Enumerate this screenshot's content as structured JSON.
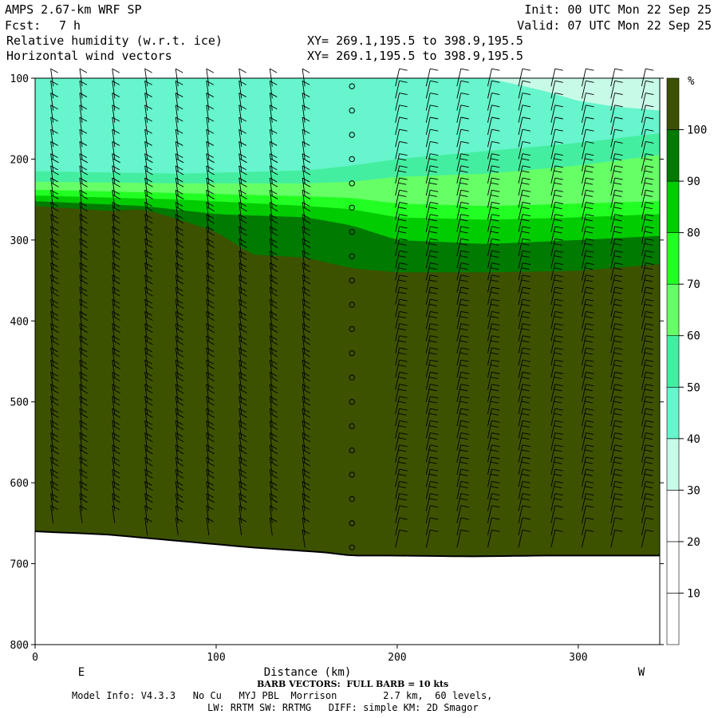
{
  "header": {
    "model": "AMPS 2.67-km WRF SP",
    "fcst_label": "Fcst:",
    "fcst_value": "7 h",
    "init": "Init: 00 UTC Mon 22 Sep 25",
    "valid": "Valid: 07 UTC Mon 22 Sep 25",
    "field1": "Relative humidity (w.r.t. ice)",
    "field2": "Horizontal wind vectors",
    "xy1": "XY= 269.1,195.5 to 398.9,195.5",
    "xy2": "XY= 269.1,195.5 to 398.9,195.5"
  },
  "footer": {
    "barb_note": "BARB VECTORS:  FULL BARB = 10 kts",
    "model_info": "Model Info: V4.3.3   No Cu   MYJ PBL  Morrison        2.7 km,  60 levels,",
    "physics": "LW: RRTM SW: RRTMG   DIFF: simple KM: 2D Smagor"
  },
  "chart_data": {
    "type": "heatmap",
    "xlabel": "Distance (km)",
    "ylabel": "",
    "x_left_label": "E",
    "x_right_label": "W",
    "xlim": [
      0,
      345
    ],
    "ylim": [
      100,
      800
    ],
    "x_ticks": [
      0,
      100,
      200,
      300
    ],
    "y_ticks": [
      100,
      200,
      300,
      400,
      500,
      600,
      700,
      800
    ],
    "colorbar": {
      "unit": "%",
      "levels": [
        10,
        20,
        30,
        40,
        50,
        60,
        70,
        80,
        90,
        100
      ],
      "colors": [
        "#ffffff",
        "#ffffff",
        "#ffffff",
        "#c8fae8",
        "#66f5cc",
        "#44eea0",
        "#66ff66",
        "#22ff22",
        "#00cc00",
        "#007a00",
        "#3d5200"
      ]
    },
    "colors": {
      "saturated": "#3d5200",
      "rh90": "#007a00",
      "rh80": "#00cc00",
      "rh70": "#22ff22",
      "rh60": "#66ff66",
      "rh50": "#44eea0",
      "rh40": "#66f5cc",
      "rh30": "#c8fae8",
      "terrain": "#ffffff",
      "barb": "#000000"
    },
    "terrain_pressure": {
      "x": [
        0,
        40,
        80,
        120,
        160,
        175,
        200,
        240,
        280,
        320,
        345
      ],
      "p": [
        660,
        664,
        672,
        680,
        686,
        690,
        690,
        691,
        690,
        690,
        690
      ]
    },
    "moist_top_pressure": {
      "x": [
        0,
        40,
        60,
        80,
        100,
        120,
        150,
        175,
        200,
        250,
        300,
        345
      ],
      "p": [
        258,
        264,
        262,
        275,
        290,
        318,
        322,
        335,
        340,
        340,
        338,
        330
      ]
    },
    "rh90_top_pressure": {
      "x": [
        0,
        60,
        100,
        150,
        175,
        200,
        250,
        300,
        345
      ],
      "p": [
        252,
        258,
        268,
        272,
        282,
        300,
        305,
        300,
        295
      ]
    },
    "rh80_top_pressure": {
      "x": [
        0,
        80,
        150,
        175,
        200,
        250,
        300,
        345
      ],
      "p": [
        245,
        250,
        258,
        262,
        272,
        275,
        272,
        268
      ]
    },
    "rh70_top_pressure": {
      "x": [
        0,
        80,
        150,
        175,
        200,
        250,
        300,
        345
      ],
      "p": [
        238,
        242,
        246,
        248,
        255,
        258,
        255,
        252
      ]
    },
    "rh60_top_pressure": {
      "x": [
        0,
        80,
        150,
        175,
        200,
        250,
        300,
        345
      ],
      "p": [
        228,
        230,
        230,
        228,
        222,
        218,
        208,
        195
      ]
    },
    "rh50_top_pressure": {
      "x": [
        0,
        80,
        150,
        175,
        200,
        250,
        300,
        345
      ],
      "p": [
        215,
        218,
        214,
        208,
        200,
        190,
        180,
        168
      ]
    },
    "rh30_bottom_pressure": {
      "x": [
        250,
        280,
        300,
        320,
        345
      ],
      "p": [
        100,
        115,
        128,
        135,
        140
      ]
    },
    "barb_columns_km": [
      10,
      26,
      44,
      62,
      79,
      96,
      114,
      131,
      149,
      175,
      199,
      216,
      233,
      250,
      267,
      285,
      302,
      318,
      335
    ],
    "calm_column_km": 175
  }
}
